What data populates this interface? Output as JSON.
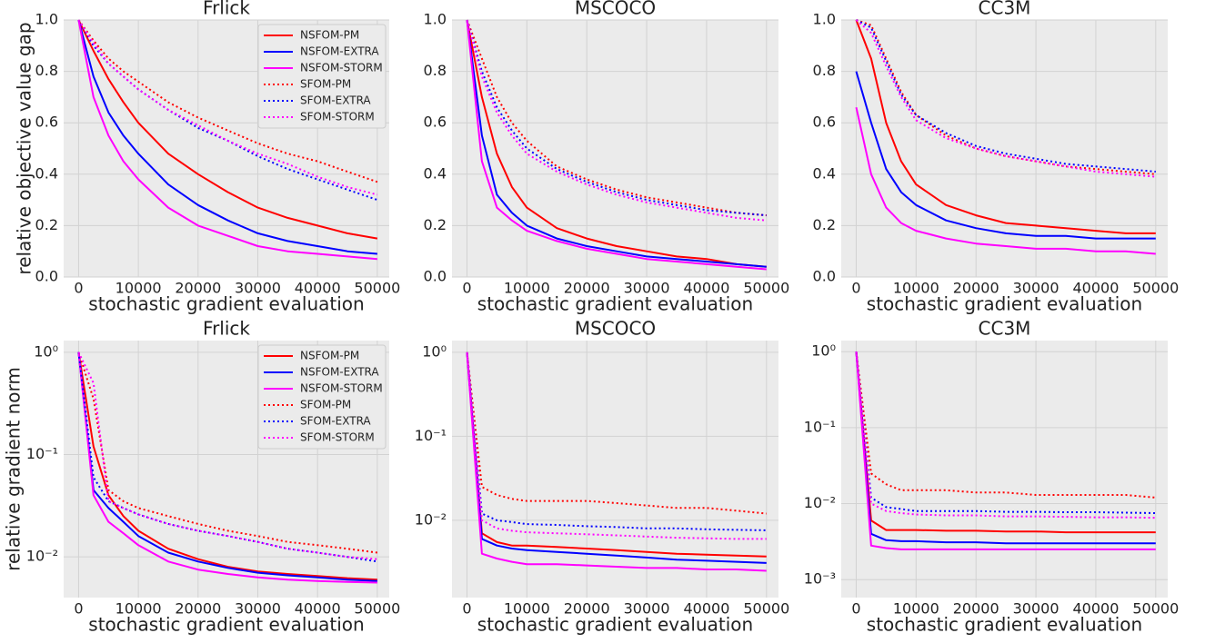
{
  "chart_data": [
    {
      "type": "line",
      "title": "Frlick",
      "xlabel": "stochastic gradient evaluation",
      "ylabel": "relative objective value gap",
      "legend": "upper right",
      "grid": true,
      "xlim": [
        -2500,
        52000
      ],
      "xticks": [
        0,
        10000,
        20000,
        30000,
        40000,
        50000
      ],
      "ylim": [
        0,
        1
      ],
      "yticks": [
        {
          "value": 0,
          "label": "0.0"
        },
        0.2,
        0.4,
        0.6,
        0.8,
        {
          "value": 1,
          "label": "1.0"
        }
      ],
      "x": [
        0,
        2500,
        5000,
        7500,
        10000,
        15000,
        20000,
        25000,
        30000,
        35000,
        40000,
        45000,
        50000
      ],
      "series": [
        {
          "name": "NSFOM-PM",
          "color": "#ff0000",
          "linestyle": "solid",
          "values": [
            1.0,
            0.88,
            0.77,
            0.68,
            0.6,
            0.48,
            0.4,
            0.33,
            0.27,
            0.23,
            0.2,
            0.17,
            0.15
          ]
        },
        {
          "name": "NSFOM-EXTRA",
          "color": "#0000ff",
          "linestyle": "solid",
          "values": [
            1.0,
            0.78,
            0.64,
            0.55,
            0.48,
            0.36,
            0.28,
            0.22,
            0.17,
            0.14,
            0.12,
            0.1,
            0.09
          ]
        },
        {
          "name": "NSFOM-STORM",
          "color": "#ff00ff",
          "linestyle": "solid",
          "values": [
            1.0,
            0.7,
            0.55,
            0.45,
            0.38,
            0.27,
            0.2,
            0.16,
            0.12,
            0.1,
            0.09,
            0.08,
            0.07
          ]
        },
        {
          "name": "SFOM-PM",
          "color": "#ff0000",
          "linestyle": "dotted",
          "values": [
            1.0,
            0.92,
            0.85,
            0.8,
            0.76,
            0.68,
            0.62,
            0.57,
            0.52,
            0.48,
            0.45,
            0.41,
            0.37
          ]
        },
        {
          "name": "SFOM-EXTRA",
          "color": "#0000ff",
          "linestyle": "dotted",
          "values": [
            1.0,
            0.9,
            0.83,
            0.78,
            0.73,
            0.65,
            0.58,
            0.53,
            0.47,
            0.42,
            0.38,
            0.34,
            0.3
          ]
        },
        {
          "name": "SFOM-STORM",
          "color": "#ff00ff",
          "linestyle": "dotted",
          "values": [
            1.0,
            0.91,
            0.83,
            0.78,
            0.73,
            0.65,
            0.59,
            0.53,
            0.48,
            0.44,
            0.39,
            0.35,
            0.32
          ]
        }
      ]
    },
    {
      "type": "line",
      "title": "MSCOCO",
      "xlabel": "stochastic gradient evaluation",
      "grid": true,
      "xlim": [
        -2500,
        52000
      ],
      "xticks": [
        0,
        10000,
        20000,
        30000,
        40000,
        50000
      ],
      "ylim": [
        0,
        1
      ],
      "yticks": [
        {
          "value": 0,
          "label": "0.0"
        },
        0.2,
        0.4,
        0.6,
        0.8,
        {
          "value": 1,
          "label": "1.0"
        }
      ],
      "x": [
        0,
        2500,
        5000,
        7500,
        10000,
        15000,
        20000,
        25000,
        30000,
        35000,
        40000,
        45000,
        50000
      ],
      "series": [
        {
          "color": "#ff0000",
          "linestyle": "solid",
          "values": [
            1.0,
            0.7,
            0.48,
            0.35,
            0.27,
            0.19,
            0.15,
            0.12,
            0.1,
            0.08,
            0.07,
            0.05,
            0.04
          ]
        },
        {
          "color": "#0000ff",
          "linestyle": "solid",
          "values": [
            1.0,
            0.55,
            0.32,
            0.25,
            0.2,
            0.15,
            0.12,
            0.1,
            0.08,
            0.07,
            0.06,
            0.05,
            0.04
          ]
        },
        {
          "color": "#ff00ff",
          "linestyle": "solid",
          "values": [
            1.0,
            0.45,
            0.27,
            0.22,
            0.18,
            0.14,
            0.11,
            0.09,
            0.07,
            0.06,
            0.05,
            0.04,
            0.03
          ]
        },
        {
          "color": "#ff0000",
          "linestyle": "dotted",
          "values": [
            1.0,
            0.85,
            0.7,
            0.6,
            0.53,
            0.43,
            0.38,
            0.34,
            0.31,
            0.29,
            0.27,
            0.25,
            0.24
          ]
        },
        {
          "color": "#0000ff",
          "linestyle": "dotted",
          "values": [
            1.0,
            0.8,
            0.66,
            0.57,
            0.5,
            0.42,
            0.37,
            0.33,
            0.3,
            0.28,
            0.26,
            0.25,
            0.24
          ]
        },
        {
          "color": "#ff00ff",
          "linestyle": "dotted",
          "values": [
            1.0,
            0.78,
            0.64,
            0.55,
            0.48,
            0.41,
            0.36,
            0.32,
            0.29,
            0.27,
            0.25,
            0.23,
            0.22
          ]
        }
      ]
    },
    {
      "type": "line",
      "title": "CC3M",
      "xlabel": "stochastic gradient evaluation",
      "grid": true,
      "xlim": [
        -2500,
        52000
      ],
      "xticks": [
        0,
        10000,
        20000,
        30000,
        40000,
        50000
      ],
      "ylim": [
        0,
        1
      ],
      "yticks": [
        {
          "value": 0,
          "label": "0.0"
        },
        0.2,
        0.4,
        0.6,
        0.8,
        {
          "value": 1,
          "label": "1.0"
        }
      ],
      "x": [
        0,
        2500,
        5000,
        7500,
        10000,
        15000,
        20000,
        25000,
        30000,
        35000,
        40000,
        45000,
        50000
      ],
      "series": [
        {
          "color": "#ff0000",
          "linestyle": "solid",
          "values": [
            1.0,
            0.85,
            0.6,
            0.45,
            0.36,
            0.28,
            0.24,
            0.21,
            0.2,
            0.19,
            0.18,
            0.17,
            0.17
          ]
        },
        {
          "color": "#0000ff",
          "linestyle": "solid",
          "values": [
            0.8,
            0.6,
            0.42,
            0.33,
            0.28,
            0.22,
            0.19,
            0.17,
            0.16,
            0.16,
            0.15,
            0.15,
            0.15
          ]
        },
        {
          "color": "#ff00ff",
          "linestyle": "solid",
          "values": [
            0.66,
            0.4,
            0.27,
            0.21,
            0.18,
            0.15,
            0.13,
            0.12,
            0.11,
            0.11,
            0.1,
            0.1,
            0.09
          ]
        },
        {
          "color": "#ff0000",
          "linestyle": "dotted",
          "values": [
            1.0,
            0.98,
            0.85,
            0.72,
            0.63,
            0.55,
            0.5,
            0.47,
            0.45,
            0.43,
            0.42,
            0.41,
            0.4
          ]
        },
        {
          "color": "#0000ff",
          "linestyle": "dotted",
          "values": [
            1.0,
            0.97,
            0.84,
            0.71,
            0.63,
            0.56,
            0.51,
            0.48,
            0.46,
            0.44,
            0.43,
            0.42,
            0.41
          ]
        },
        {
          "color": "#ff00ff",
          "linestyle": "dotted",
          "values": [
            1.0,
            0.95,
            0.82,
            0.7,
            0.61,
            0.54,
            0.5,
            0.47,
            0.45,
            0.43,
            0.41,
            0.4,
            0.39
          ]
        }
      ]
    },
    {
      "type": "line",
      "title": "Frlick",
      "xlabel": "stochastic gradient evaluation",
      "ylabel": "relative gradient norm",
      "legend": "upper right",
      "grid": true,
      "yscale": "log",
      "xlim": [
        -2500,
        52000
      ],
      "xticks": [
        0,
        10000,
        20000,
        30000,
        40000,
        50000
      ],
      "ylim": [
        0.004,
        1.3
      ],
      "yticks": [
        {
          "value": 1,
          "label": "10⁰"
        },
        {
          "value": 0.1,
          "label": "10⁻¹"
        },
        {
          "value": 0.01,
          "label": "10⁻²"
        }
      ],
      "x": [
        0,
        2500,
        5000,
        7500,
        10000,
        15000,
        20000,
        25000,
        30000,
        35000,
        40000,
        45000,
        50000
      ],
      "series": [
        {
          "name": "NSFOM-PM",
          "color": "#ff0000",
          "linestyle": "solid",
          "values": [
            1.0,
            0.12,
            0.04,
            0.025,
            0.018,
            0.012,
            0.0095,
            0.008,
            0.0072,
            0.0068,
            0.0065,
            0.0062,
            0.006
          ]
        },
        {
          "name": "NSFOM-EXTRA",
          "color": "#0000ff",
          "linestyle": "solid",
          "values": [
            1.0,
            0.045,
            0.03,
            0.022,
            0.016,
            0.011,
            0.009,
            0.0078,
            0.007,
            0.0066,
            0.0063,
            0.006,
            0.0058
          ]
        },
        {
          "name": "NSFOM-STORM",
          "color": "#ff00ff",
          "linestyle": "solid",
          "values": [
            1.0,
            0.04,
            0.022,
            0.017,
            0.013,
            0.009,
            0.0075,
            0.0068,
            0.0063,
            0.006,
            0.0058,
            0.0057,
            0.0056
          ]
        },
        {
          "name": "SFOM-PM",
          "color": "#ff0000",
          "linestyle": "dotted",
          "values": [
            1.0,
            0.35,
            0.045,
            0.035,
            0.03,
            0.025,
            0.021,
            0.018,
            0.016,
            0.014,
            0.013,
            0.012,
            0.011
          ]
        },
        {
          "name": "SFOM-EXTRA",
          "color": "#0000ff",
          "linestyle": "dotted",
          "values": [
            1.0,
            0.06,
            0.035,
            0.03,
            0.026,
            0.021,
            0.018,
            0.016,
            0.014,
            0.012,
            0.011,
            0.01,
            0.009
          ]
        },
        {
          "name": "SFOM-STORM",
          "color": "#ff00ff",
          "linestyle": "dotted",
          "values": [
            1.0,
            0.5,
            0.035,
            0.03,
            0.026,
            0.021,
            0.018,
            0.016,
            0.014,
            0.012,
            0.011,
            0.01,
            0.0095
          ]
        }
      ]
    },
    {
      "type": "line",
      "title": "MSCOCO",
      "xlabel": "stochastic gradient evaluation",
      "grid": true,
      "yscale": "log",
      "xlim": [
        -2500,
        52000
      ],
      "xticks": [
        0,
        10000,
        20000,
        30000,
        40000,
        50000
      ],
      "ylim": [
        0.0012,
        1.38
      ],
      "yticks": [
        {
          "value": 1,
          "label": "10⁰"
        },
        {
          "value": 0.1,
          "label": "10⁻¹"
        },
        {
          "value": 0.01,
          "label": "10⁻²"
        }
      ],
      "x": [
        0,
        2500,
        5000,
        7500,
        10000,
        15000,
        20000,
        25000,
        30000,
        35000,
        40000,
        45000,
        50000
      ],
      "series": [
        {
          "color": "#ff0000",
          "linestyle": "solid",
          "values": [
            1.0,
            0.007,
            0.0055,
            0.005,
            0.005,
            0.0048,
            0.0046,
            0.0044,
            0.0042,
            0.004,
            0.0039,
            0.0038,
            0.0037
          ]
        },
        {
          "color": "#0000ff",
          "linestyle": "solid",
          "values": [
            1.0,
            0.006,
            0.005,
            0.0046,
            0.0044,
            0.0042,
            0.004,
            0.0038,
            0.0036,
            0.0034,
            0.0033,
            0.0032,
            0.0031
          ]
        },
        {
          "color": "#ff00ff",
          "linestyle": "solid",
          "values": [
            1.0,
            0.004,
            0.0035,
            0.0032,
            0.003,
            0.003,
            0.0029,
            0.0028,
            0.0027,
            0.0027,
            0.0026,
            0.0026,
            0.0025
          ]
        },
        {
          "color": "#ff0000",
          "linestyle": "dotted",
          "values": [
            1.0,
            0.025,
            0.02,
            0.018,
            0.017,
            0.017,
            0.017,
            0.016,
            0.015,
            0.014,
            0.014,
            0.013,
            0.012
          ]
        },
        {
          "color": "#0000ff",
          "linestyle": "dotted",
          "values": [
            1.0,
            0.012,
            0.01,
            0.0095,
            0.009,
            0.0088,
            0.0085,
            0.0083,
            0.008,
            0.008,
            0.0078,
            0.0077,
            0.0076
          ]
        },
        {
          "color": "#ff00ff",
          "linestyle": "dotted",
          "values": [
            1.0,
            0.01,
            0.008,
            0.0075,
            0.0072,
            0.007,
            0.0068,
            0.0066,
            0.0064,
            0.0062,
            0.0061,
            0.006,
            0.006
          ]
        }
      ]
    },
    {
      "type": "line",
      "title": "CC3M",
      "xlabel": "stochastic gradient evaluation",
      "grid": true,
      "yscale": "log",
      "xlim": [
        -2500,
        52000
      ],
      "xticks": [
        0,
        10000,
        20000,
        30000,
        40000,
        50000
      ],
      "ylim": [
        0.00058,
        1.4
      ],
      "yticks": [
        {
          "value": 1,
          "label": "10⁰"
        },
        {
          "value": 0.1,
          "label": "10⁻¹"
        },
        {
          "value": 0.01,
          "label": "10⁻²"
        },
        {
          "value": 0.001,
          "label": "10⁻³"
        }
      ],
      "x": [
        0,
        2500,
        5000,
        7500,
        10000,
        15000,
        20000,
        25000,
        30000,
        35000,
        40000,
        45000,
        50000
      ],
      "series": [
        {
          "color": "#ff0000",
          "linestyle": "solid",
          "values": [
            1.0,
            0.006,
            0.0045,
            0.0045,
            0.0045,
            0.0044,
            0.0044,
            0.0043,
            0.0043,
            0.0042,
            0.0042,
            0.0042,
            0.0042
          ]
        },
        {
          "color": "#0000ff",
          "linestyle": "solid",
          "values": [
            1.0,
            0.004,
            0.0033,
            0.0032,
            0.0032,
            0.0031,
            0.0031,
            0.003,
            0.003,
            0.003,
            0.003,
            0.003,
            0.003
          ]
        },
        {
          "color": "#ff00ff",
          "linestyle": "solid",
          "values": [
            1.0,
            0.0028,
            0.0026,
            0.0025,
            0.0025,
            0.0025,
            0.0025,
            0.0025,
            0.0025,
            0.0025,
            0.0025,
            0.0025,
            0.0025
          ]
        },
        {
          "color": "#ff0000",
          "linestyle": "dotted",
          "values": [
            1.0,
            0.025,
            0.018,
            0.015,
            0.015,
            0.015,
            0.014,
            0.014,
            0.013,
            0.013,
            0.013,
            0.013,
            0.012
          ]
        },
        {
          "color": "#0000ff",
          "linestyle": "dotted",
          "values": [
            1.0,
            0.012,
            0.009,
            0.0085,
            0.008,
            0.008,
            0.008,
            0.0078,
            0.0078,
            0.0077,
            0.0077,
            0.0076,
            0.0075
          ]
        },
        {
          "color": "#ff00ff",
          "linestyle": "dotted",
          "values": [
            1.0,
            0.01,
            0.008,
            0.0075,
            0.0072,
            0.007,
            0.007,
            0.0068,
            0.0068,
            0.0067,
            0.0066,
            0.0066,
            0.0065
          ]
        }
      ]
    }
  ]
}
